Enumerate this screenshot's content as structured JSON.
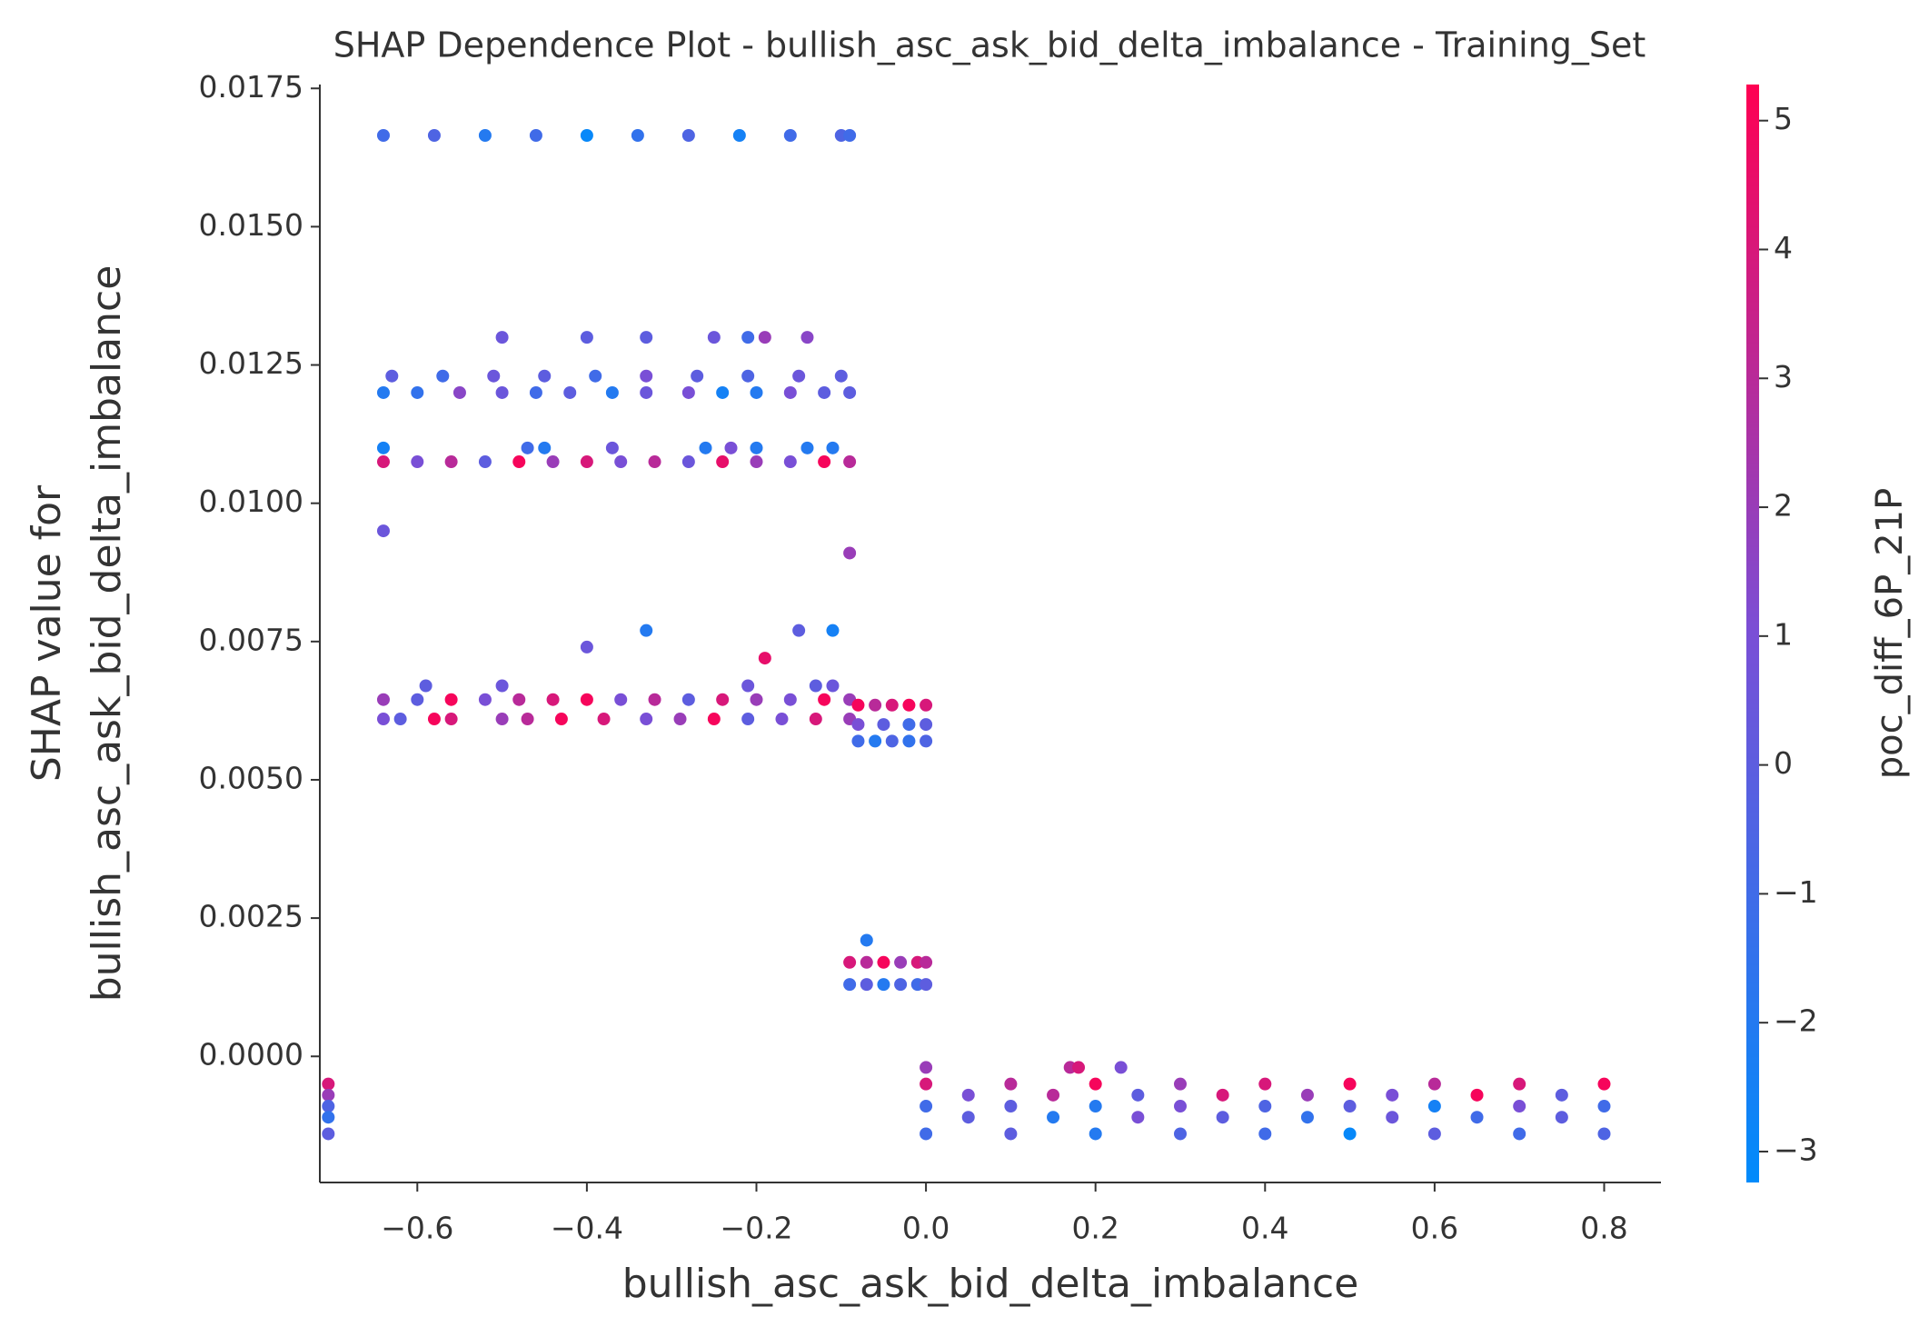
{
  "chart_data": {
    "type": "scatter",
    "title": "SHAP Dependence Plot - bullish_asc_ask_bid_delta_imbalance - Training_Set",
    "xlabel": "bullish_asc_ask_bid_delta_imbalance",
    "ylabel": [
      "SHAP value for",
      "bullish_asc_ask_bid_delta_imbalance"
    ],
    "colorbar_label": "poc_diff_6P_21P",
    "xlim": [
      -0.715,
      0.867
    ],
    "ylim": [
      -0.00228,
      0.01757
    ],
    "clim": [
      -3.24,
      5.28
    ],
    "xticks": [
      {
        "value": -0.6,
        "label": "−0.6"
      },
      {
        "value": -0.4,
        "label": "−0.4"
      },
      {
        "value": -0.2,
        "label": "−0.2"
      },
      {
        "value": 0,
        "label": "0.0"
      },
      0.2,
      0.4,
      0.6,
      0.8
    ],
    "yticks": [
      {
        "value": 0,
        "label": "0.0000"
      },
      {
        "value": 0.0025,
        "label": "0.0025"
      },
      {
        "value": 0.005,
        "label": "0.0050"
      },
      {
        "value": 0.0075,
        "label": "0.0075"
      },
      {
        "value": 0.01,
        "label": "0.0100"
      },
      {
        "value": 0.0125,
        "label": "0.0125"
      },
      {
        "value": 0.015,
        "label": "0.0150"
      },
      {
        "value": 0.0175,
        "label": "0.0175"
      }
    ],
    "cticks": [
      {
        "value": -3,
        "label": "−3"
      },
      {
        "value": -2,
        "label": "−2"
      },
      {
        "value": -1,
        "label": "−1"
      },
      0,
      1,
      2,
      3,
      4,
      5
    ],
    "colormap": [
      "#008bfb",
      "#7a4fd6",
      "#ff0052"
    ],
    "series": [
      {
        "x": [
          -0.64,
          -0.58,
          -0.52,
          -0.46,
          -0.4,
          -0.34,
          -0.28,
          -0.22,
          -0.16,
          -0.1,
          -0.09
        ],
        "values": [
          0.01665,
          0.01665,
          0.01665,
          0.01665,
          0.01665,
          0.01665,
          0.01665,
          0.01665,
          0.01665,
          0.01665,
          0.01665
        ],
        "color_values": [
          -1,
          -0.5,
          -2,
          -1,
          -3,
          -1.5,
          -0.5,
          -2.5,
          -1,
          -0.5,
          -1
        ]
      },
      {
        "x": [
          -0.63,
          -0.57,
          -0.51,
          -0.45,
          -0.39,
          -0.33,
          -0.27,
          -0.21,
          -0.15,
          -0.1
        ],
        "values": [
          0.0123,
          0.0123,
          0.0123,
          0.0123,
          0.0123,
          0.0123,
          0.0123,
          0.0123,
          0.0123,
          0.0123
        ],
        "color_values": [
          0,
          -1,
          0.5,
          0,
          -1,
          1,
          0,
          -0.5,
          0.5,
          0
        ]
      },
      {
        "x": [
          -0.5,
          -0.4,
          -0.33,
          -0.25,
          -0.21,
          -0.19,
          -0.14
        ],
        "values": [
          0.013,
          0.013,
          0.013,
          0.013,
          0.013,
          0.013,
          0.013
        ],
        "color_values": [
          0.5,
          0,
          0,
          0.5,
          -1,
          2,
          1.5
        ]
      },
      {
        "x": [
          -0.64,
          -0.6,
          -0.55,
          -0.5,
          -0.46,
          -0.42,
          -0.37,
          -0.33,
          -0.28,
          -0.24,
          -0.2,
          -0.16,
          -0.12,
          -0.09
        ],
        "values": [
          0.012,
          0.012,
          0.012,
          0.012,
          0.012,
          0.012,
          0.012,
          0.012,
          0.012,
          0.012,
          0.012,
          0.012,
          0.012,
          0.012
        ],
        "color_values": [
          -2,
          -1.5,
          1.5,
          0.5,
          -1,
          0,
          -2,
          0.5,
          1,
          -2.5,
          -2,
          1,
          0,
          0
        ]
      },
      {
        "x": [
          -0.64,
          -0.47,
          -0.45,
          -0.37,
          -0.26,
          -0.23,
          -0.2,
          -0.14,
          -0.11
        ],
        "values": [
          0.011,
          0.011,
          0.011,
          0.011,
          0.011,
          0.011,
          0.011,
          0.011,
          0.011
        ],
        "color_values": [
          -2.5,
          -1,
          -2,
          0.5,
          -2,
          1,
          -2,
          -2,
          -2
        ]
      },
      {
        "x": [
          -0.64,
          -0.6,
          -0.56,
          -0.52,
          -0.48,
          -0.44,
          -0.4,
          -0.36,
          -0.32,
          -0.28,
          -0.24,
          -0.2,
          -0.16,
          -0.12,
          -0.09
        ],
        "values": [
          0.01075,
          0.01075,
          0.01075,
          0.01075,
          0.01075,
          0.01075,
          0.01075,
          0.01075,
          0.01075,
          0.01075,
          0.01075,
          0.01075,
          0.01075,
          0.01075,
          0.01075
        ],
        "color_values": [
          4,
          1,
          3,
          0,
          5,
          2,
          4,
          1,
          3,
          0.5,
          4.5,
          2,
          1,
          5,
          3
        ]
      },
      {
        "x": [
          -0.64,
          -0.09,
          -0.4,
          -0.33,
          -0.15,
          -0.11,
          -0.19
        ],
        "values": [
          0.0095,
          0.0091,
          0.0074,
          0.0077,
          0.0077,
          0.0077,
          0.0072
        ],
        "color_values": [
          0.5,
          2,
          0.5,
          -2,
          0,
          -2.5,
          4.5
        ]
      },
      {
        "x": [
          -0.59,
          -0.5,
          -0.21,
          -0.13,
          -0.11
        ],
        "values": [
          0.0067,
          0.0067,
          0.0067,
          0.0067,
          0.0067
        ],
        "color_values": [
          0,
          0.5,
          0.5,
          0,
          0.5
        ]
      },
      {
        "x": [
          -0.64,
          -0.6,
          -0.56,
          -0.52,
          -0.48,
          -0.44,
          -0.4,
          -0.36,
          -0.32,
          -0.28,
          -0.24,
          -0.2,
          -0.16,
          -0.12,
          -0.09
        ],
        "values": [
          0.00645,
          0.00645,
          0.00645,
          0.00645,
          0.00645,
          0.00645,
          0.00645,
          0.00645,
          0.00645,
          0.00645,
          0.00645,
          0.00645,
          0.00645,
          0.00645,
          0.00645
        ],
        "color_values": [
          2,
          0,
          5,
          1,
          3,
          4,
          5,
          1,
          3,
          0,
          4,
          2,
          1,
          5,
          2
        ]
      },
      {
        "x": [
          -0.64,
          -0.62,
          -0.58,
          -0.56,
          -0.5,
          -0.47,
          -0.43,
          -0.38,
          -0.33,
          -0.29,
          -0.25,
          -0.21,
          -0.17,
          -0.13,
          -0.09
        ],
        "values": [
          0.0061,
          0.0061,
          0.0061,
          0.0061,
          0.0061,
          0.0061,
          0.0061,
          0.0061,
          0.0061,
          0.0061,
          0.0061,
          0.0061,
          0.0061,
          0.0061,
          0.0061
        ],
        "color_values": [
          1,
          0,
          5,
          4,
          2,
          3,
          5,
          4,
          1,
          2,
          5,
          0,
          1,
          4,
          2
        ]
      },
      {
        "x": [
          -0.08,
          -0.06,
          -0.04,
          -0.02,
          0.0
        ],
        "values": [
          0.00635,
          0.00635,
          0.00635,
          0.00635,
          0.00635
        ],
        "color_values": [
          5,
          3,
          4,
          5,
          4
        ]
      },
      {
        "x": [
          -0.08,
          -0.05,
          -0.02,
          0.0
        ],
        "values": [
          0.006,
          0.006,
          0.006,
          0.006
        ],
        "color_values": [
          1,
          0,
          -1,
          0
        ]
      },
      {
        "x": [
          -0.08,
          -0.06,
          -0.04,
          -0.02,
          0.0
        ],
        "values": [
          0.0057,
          0.0057,
          0.0057,
          0.0057,
          0.0057
        ],
        "color_values": [
          -1,
          -2,
          -0.5,
          -1.5,
          -0.5
        ]
      },
      {
        "x": [
          -0.09,
          -0.07,
          -0.05,
          -0.03,
          -0.01,
          0.0
        ],
        "values": [
          0.0017,
          0.0017,
          0.0017,
          0.0017,
          0.0017,
          0.0017
        ],
        "color_values": [
          4,
          3,
          5,
          2,
          4,
          3
        ]
      },
      {
        "x": [
          -0.09,
          -0.07,
          -0.05,
          -0.03,
          -0.01,
          0.0
        ],
        "values": [
          0.0013,
          0.0013,
          0.0013,
          0.0013,
          0.0013,
          0.0013
        ],
        "color_values": [
          -1,
          0,
          -2,
          -0.5,
          -1,
          0
        ]
      },
      {
        "x": [
          -0.07
        ],
        "values": [
          0.0021
        ],
        "color_values": [
          -2
        ]
      },
      {
        "x": [
          -0.705,
          -0.705,
          -0.705,
          -0.705,
          -0.705
        ],
        "values": [
          -0.0005,
          -0.0007,
          -0.0009,
          -0.0011,
          -0.0014
        ],
        "color_values": [
          4,
          2,
          -0.5,
          -1.5,
          0
        ]
      },
      {
        "x": [
          0.0,
          0.1,
          0.2,
          0.3,
          0.4,
          0.5,
          0.6,
          0.7,
          0.8
        ],
        "values": [
          -0.0005,
          -0.0005,
          -0.0005,
          -0.0005,
          -0.0005,
          -0.0005,
          -0.0005,
          -0.0005,
          -0.0005
        ],
        "color_values": [
          4,
          3,
          5,
          2,
          4,
          5,
          3,
          4,
          5
        ]
      },
      {
        "x": [
          0.05,
          0.15,
          0.25,
          0.35,
          0.45,
          0.55,
          0.65,
          0.75
        ],
        "values": [
          -0.0007,
          -0.0007,
          -0.0007,
          -0.0007,
          -0.0007,
          -0.0007,
          -0.0007,
          -0.0007
        ],
        "color_values": [
          1,
          3,
          0,
          4,
          2,
          1,
          5,
          0
        ]
      },
      {
        "x": [
          0.0,
          0.1,
          0.2,
          0.3,
          0.4,
          0.5,
          0.6,
          0.7,
          0.8
        ],
        "values": [
          -0.0009,
          -0.0009,
          -0.0009,
          -0.0009,
          -0.0009,
          -0.0009,
          -0.0009,
          -0.0009,
          -0.0009
        ],
        "color_values": [
          -1,
          0,
          -2,
          1,
          -0.5,
          0,
          -2.5,
          1,
          -1
        ]
      },
      {
        "x": [
          0.05,
          0.15,
          0.25,
          0.35,
          0.45,
          0.55,
          0.65,
          0.75
        ],
        "values": [
          -0.0011,
          -0.0011,
          -0.0011,
          -0.0011,
          -0.0011,
          -0.0011,
          -0.0011,
          -0.0011
        ],
        "color_values": [
          0,
          -2,
          1,
          0,
          -1.5,
          0.5,
          -1,
          0
        ]
      },
      {
        "x": [
          0.0,
          0.1,
          0.2,
          0.3,
          0.4,
          0.5,
          0.6,
          0.7,
          0.8
        ],
        "values": [
          -0.0014,
          -0.0014,
          -0.0014,
          -0.0014,
          -0.0014,
          -0.0014,
          -0.0014,
          -0.0014,
          -0.0014
        ],
        "color_values": [
          -1,
          0,
          -2,
          -0.5,
          -1,
          -3,
          0,
          -1,
          -0.5
        ]
      },
      {
        "x": [
          0.0,
          0.17,
          0.18,
          0.23
        ],
        "values": [
          -0.0002,
          -0.0002,
          -0.0002,
          -0.0002
        ],
        "color_values": [
          2,
          3,
          4,
          1
        ]
      }
    ]
  }
}
